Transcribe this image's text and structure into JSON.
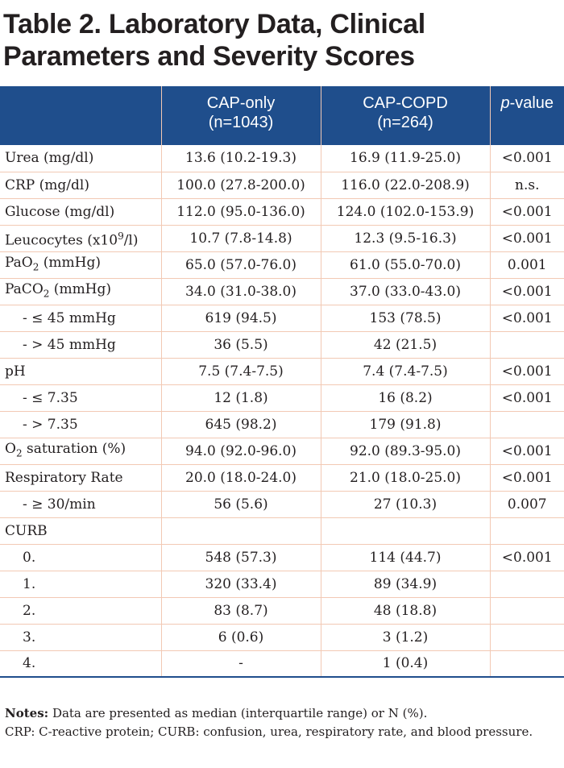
{
  "title": {
    "line1": "Table 2. Laboratory Data, Clinical",
    "line2": "Parameters and Severity Scores"
  },
  "header": {
    "col1": "",
    "col2_line1": "CAP-only",
    "col2_line2": "(n=1043)",
    "col3_line1": "CAP-COPD",
    "col3_line2": "(n=264)",
    "col4_italic": "p",
    "col4_rest": "-value"
  },
  "rows": [
    {
      "label": "Urea (mg/dl)",
      "cap": "13.6 (10.2-19.3)",
      "copd": "16.9 (11.9-25.0)",
      "p": "<0.001"
    },
    {
      "label": "CRP (mg/dl)",
      "cap": "100.0 (27.8-200.0)",
      "copd": "116.0 (22.0-208.9)",
      "p": "n.s."
    },
    {
      "label": "Glucose (mg/dl)",
      "cap": "112.0 (95.0-136.0)",
      "copd": "124.0 (102.0-153.9)",
      "p": "<0.001"
    },
    {
      "label_pre": "Leucocytes (x10",
      "label_sup": "9",
      "label_post": "/l)",
      "cap": "10.7 (7.8-14.8)",
      "copd": "12.3 (9.5-16.3)",
      "p": "<0.001"
    },
    {
      "label_pre": "PaO",
      "label_sub": "2",
      "label_post": " (mmHg)",
      "cap": "65.0 (57.0-76.0)",
      "copd": "61.0 (55.0-70.0)",
      "p": "0.001"
    },
    {
      "label_pre": "PaCO",
      "label_sub": "2",
      "label_post": " (mmHg)",
      "cap": "34.0 (31.0-38.0)",
      "copd": "37.0 (33.0-43.0)",
      "p": "<0.001"
    },
    {
      "label": "- ≤ 45 mmHg",
      "cap": "619 (94.5)",
      "copd": "153 (78.5)",
      "p": "<0.001"
    },
    {
      "label": "- > 45 mmHg",
      "cap": "36 (5.5)",
      "copd": "42 (21.5)",
      "p": ""
    },
    {
      "label": "pH",
      "cap": "7.5 (7.4-7.5)",
      "copd": "7.4 (7.4-7.5)",
      "p": "<0.001"
    },
    {
      "label": "- ≤ 7.35",
      "cap": "12 (1.8)",
      "copd": "16 (8.2)",
      "p": "<0.001"
    },
    {
      "label": "- > 7.35",
      "cap": "645 (98.2)",
      "copd": "179 (91.8)",
      "p": ""
    },
    {
      "label_pre": "O",
      "label_sub": "2",
      "label_post": " saturation (%)",
      "cap": "94.0 (92.0-96.0)",
      "copd": "92.0 (89.3-95.0)",
      "p": "<0.001"
    },
    {
      "label": "Respiratory Rate",
      "cap": "20.0 (18.0-24.0)",
      "copd": "21.0 (18.0-25.0)",
      "p": "<0.001"
    },
    {
      "label": "- ≥ 30/min",
      "cap": "56 (5.6)",
      "copd": "27 (10.3)",
      "p": "0.007"
    },
    {
      "label": "CURB",
      "cap": "",
      "copd": "",
      "p": ""
    },
    {
      "label": "0.",
      "cap": "548 (57.3)",
      "copd": "114 (44.7)",
      "p": "<0.001"
    },
    {
      "label": "1.",
      "cap": "320 (33.4)",
      "copd": "89 (34.9)",
      "p": ""
    },
    {
      "label": "2.",
      "cap": "83 (8.7)",
      "copd": "48 (18.8)",
      "p": ""
    },
    {
      "label": "3.",
      "cap": "6 (0.6)",
      "copd": "3 (1.2)",
      "p": ""
    },
    {
      "label": "4.",
      "cap": "-",
      "copd": "1 (0.4)",
      "p": ""
    }
  ],
  "notes": {
    "bold": "Notes:",
    "line1": " Data are presented as median (interquartile range) or N (%).",
    "line2": "CRP: C-reactive protein; CURB: confusion, urea, respiratory rate, and blood pressure."
  }
}
